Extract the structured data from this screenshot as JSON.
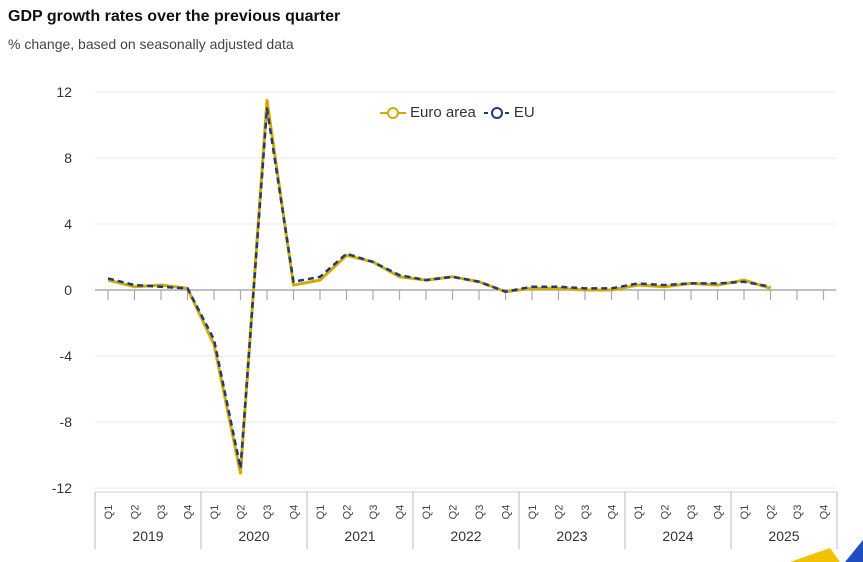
{
  "chart_data": {
    "type": "line",
    "title": "GDP growth rates over the previous quarter",
    "subtitle": "% change, based on seasonally adjusted data",
    "xlabel": "",
    "ylabel": "",
    "ylim": [
      -12,
      12
    ],
    "yticks": [
      "12",
      "8",
      "4",
      "0",
      "-4",
      "-8",
      "-12"
    ],
    "ytick_values": [
      12,
      8,
      4,
      0,
      -4,
      -8,
      -12
    ],
    "grid": true,
    "legend_position": "top-center",
    "years": [
      "2019",
      "2020",
      "2021",
      "2022",
      "2023",
      "2024",
      "2025"
    ],
    "quarters": [
      "Q1",
      "Q2",
      "Q3",
      "Q4"
    ],
    "series": [
      {
        "name": "Euro area",
        "color": "#d4a900",
        "style": "solid",
        "values": [
          0.6,
          0.2,
          0.3,
          0.1,
          -3.3,
          -11.1,
          11.5,
          0.3,
          0.6,
          2.1,
          1.7,
          0.8,
          0.6,
          0.8,
          0.5,
          -0.1,
          0.1,
          0.1,
          0.0,
          0.0,
          0.3,
          0.2,
          0.4,
          0.3,
          0.6,
          0.1
        ]
      },
      {
        "name": "EU",
        "color": "#1f3a7a",
        "style": "dashed",
        "values": [
          0.7,
          0.3,
          0.2,
          0.1,
          -3.0,
          -10.8,
          11.0,
          0.5,
          0.8,
          2.2,
          1.7,
          0.9,
          0.6,
          0.8,
          0.5,
          -0.1,
          0.2,
          0.2,
          0.1,
          0.1,
          0.4,
          0.3,
          0.4,
          0.4,
          0.5,
          0.2
        ]
      }
    ]
  }
}
